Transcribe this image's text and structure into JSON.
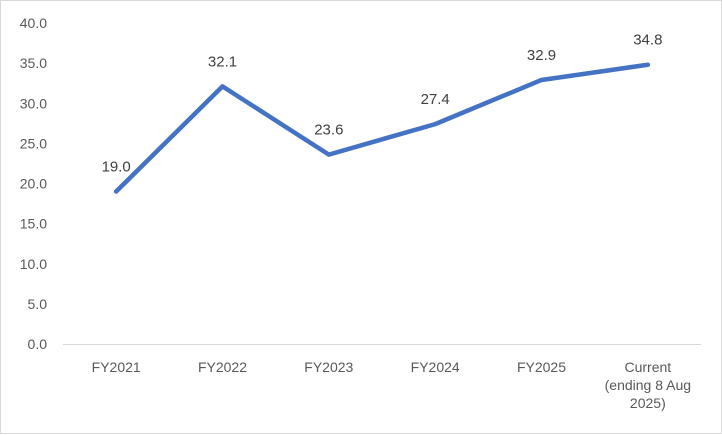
{
  "chart_data": {
    "type": "line",
    "title": "",
    "xlabel": "",
    "ylabel": "",
    "categories": [
      [
        "FY2021"
      ],
      [
        "FY2022"
      ],
      [
        "FY2023"
      ],
      [
        "FY2024"
      ],
      [
        "FY2025"
      ],
      [
        "Current",
        "(ending 8 Aug",
        "2025)"
      ]
    ],
    "series": [
      {
        "values": [
          19.0,
          32.1,
          23.6,
          27.4,
          32.9,
          34.8
        ]
      }
    ],
    "data_labels": [
      "19.0",
      "32.1",
      "23.6",
      "27.4",
      "32.9",
      "34.8"
    ],
    "y_ticks": [
      "0.0",
      "5.0",
      "10.0",
      "15.0",
      "20.0",
      "25.0",
      "30.0",
      "35.0",
      "40.0"
    ],
    "ylim": [
      0,
      40
    ],
    "grid": false,
    "legend": "none",
    "colors": {
      "line": "#4472c4",
      "axis": "#d9d9d9",
      "text": "#595959"
    }
  }
}
